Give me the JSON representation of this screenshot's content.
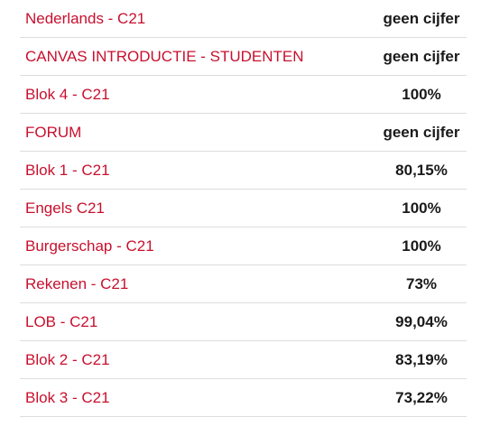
{
  "courses": [
    {
      "name": "Nederlands - C21",
      "grade": "geen cijfer"
    },
    {
      "name": "CANVAS INTRODUCTIE - STUDENTEN",
      "grade": "geen cijfer"
    },
    {
      "name": "Blok 4 - C21",
      "grade": "100%"
    },
    {
      "name": "FORUM",
      "grade": "geen cijfer"
    },
    {
      "name": "Blok 1 - C21",
      "grade": "80,15%"
    },
    {
      "name": "Engels C21",
      "grade": "100%"
    },
    {
      "name": "Burgerschap - C21",
      "grade": "100%"
    },
    {
      "name": "Rekenen - C21",
      "grade": "73%"
    },
    {
      "name": "LOB - C21",
      "grade": "99,04%"
    },
    {
      "name": "Blok 2 - C21",
      "grade": "83,19%"
    },
    {
      "name": "Blok 3 - C21",
      "grade": "73,22%"
    }
  ],
  "colors": {
    "link": "#c8102e",
    "grade_text": "#1a1a1a",
    "divider": "#dddddd"
  }
}
